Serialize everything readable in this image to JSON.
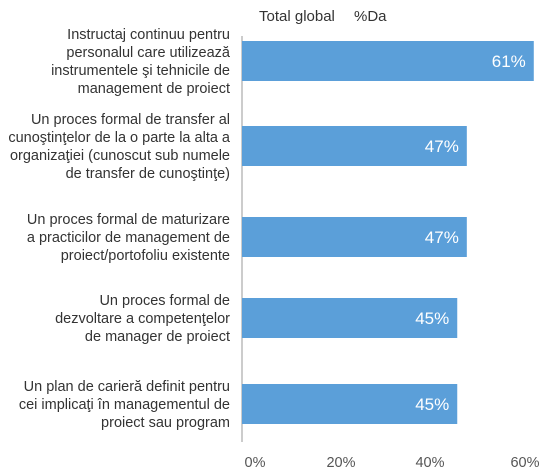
{
  "chart_data": {
    "type": "bar",
    "orientation": "horizontal",
    "header": {
      "series_title": "Total global",
      "value_title": "%Da"
    },
    "categories": [
      [
        "Instructaj continuu pentru",
        "personalul care utilizează",
        "instrumentele şi tehnicile de",
        "management de proiect"
      ],
      [
        "Un proces formal de transfer al",
        "cunoştinţelor de la o parte la alta a",
        "organizaţiei (cunoscut sub numele",
        "de transfer de cunoştinţe)"
      ],
      [
        "Un proces formal de maturizare",
        "a practicilor de management de",
        "proiect/portofoliu existente"
      ],
      [
        "Un proces formal de",
        "dezvoltare a competenţelor",
        "de manager de proiect"
      ],
      [
        "Un plan de carieră definit pentru",
        "cei implicaţi în managementul de",
        "proiect sau program"
      ]
    ],
    "values": [
      61,
      47,
      47,
      45,
      45
    ],
    "value_labels": [
      "61%",
      "47%",
      "47%",
      "45%",
      "45%"
    ],
    "xlim": [
      0,
      60
    ],
    "x_ticks": [
      "0%",
      "20%",
      "40%",
      "60%"
    ],
    "grid": false,
    "colors": {
      "bar": "#5b9fd9",
      "axis": "#9a9a9a",
      "data_label": "#ffffff"
    }
  }
}
